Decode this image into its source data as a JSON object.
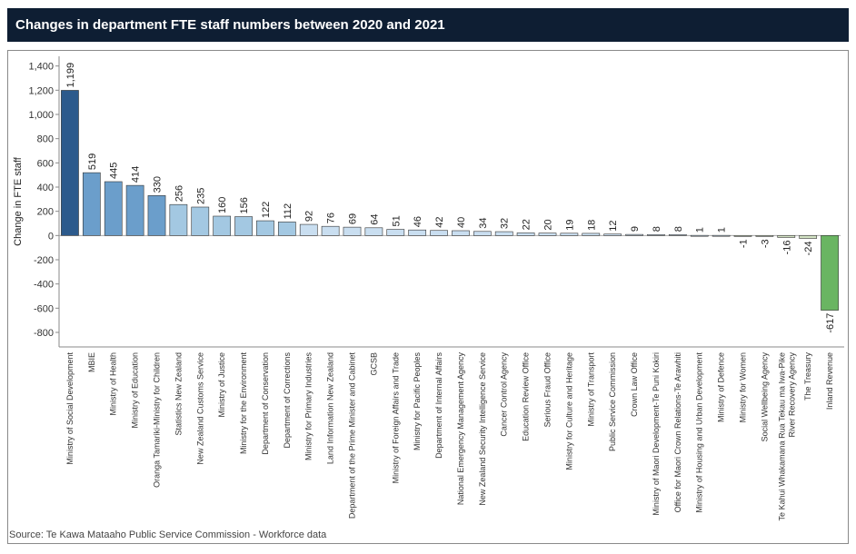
{
  "title": "Changes in department FTE staff numbers between 2020 and 2021",
  "source": "Source: Te Kawa Mataaho Public Service Commission - Workforce data",
  "colors": {
    "title_bg": "#0e1e33",
    "very_high": "#2c5a8c",
    "high": "#6b9ecb",
    "mid": "#a3c8e2",
    "low": "#c9def0",
    "negative_small": "#d3e3c4",
    "negative_large": "#6ab562"
  },
  "chart_data": {
    "type": "bar",
    "title": "Changes in department FTE staff numbers between 2020 and 2021",
    "xlabel": "",
    "ylabel": "Change in FTE staff",
    "ylim": [
      -920,
      1480
    ],
    "yticks": [
      -800,
      -600,
      -400,
      -200,
      0,
      200,
      400,
      600,
      800,
      1000,
      1200,
      1400
    ],
    "ytick_labels": [
      "-800",
      "-600",
      "-400",
      "-200",
      "0",
      "200",
      "400",
      "600",
      "800",
      "1,000",
      "1,200",
      "1,400"
    ],
    "grid": false,
    "legend": "none",
    "categories": [
      "Ministry of Social Development",
      "MBIE",
      "Ministry of Health",
      "Ministry of Education",
      "Oranga Tamariki-Ministry for Children",
      "Statistics New Zealand",
      "New Zealand Customs Service",
      "Ministry of Justice",
      "Ministry for the Environment",
      "Department of Conservation",
      "Department of Corrections",
      "Ministry for Primary Industries",
      "Land Information New Zealand",
      "Department of the Prime Minister and Cabinet",
      "GCSB",
      "Ministry of Foreign Affairs and Trade",
      "Ministry for Pacific Peoples",
      "Department of Internal Affairs",
      "National Emergency Management Agency",
      "New Zealand Security Intelligence Service",
      "Cancer Control Agency",
      "Education Review Office",
      "Serious Fraud Office",
      "Ministry for Culture and Heritage",
      "Ministry of Transport",
      "Public Service Commission",
      "Crown Law Office",
      "Ministry of Maori Development-Te Puni Kokiri",
      "Office for Maori Crown Relations-Te Arawhiti",
      "Ministry of Housing and Urban Development",
      "Ministry of Defence",
      "Ministry for Women",
      "Social Wellbeing Agency",
      [
        "Te Kahui Whakamana Rua Tekau ma Iwa-Pike",
        "River Recovery Agency"
      ],
      "The Treasury",
      "Inland Revenue"
    ],
    "values": [
      1199,
      519,
      445,
      414,
      330,
      256,
      235,
      160,
      156,
      122,
      112,
      92,
      76,
      69,
      64,
      51,
      46,
      42,
      40,
      34,
      32,
      22,
      20,
      19,
      18,
      12,
      9,
      8,
      8,
      1,
      1,
      -1,
      -3,
      -16,
      -24,
      -617
    ],
    "value_labels": [
      "1,199",
      "519",
      "445",
      "414",
      "330",
      "256",
      "235",
      "160",
      "156",
      "122",
      "112",
      "92",
      "76",
      "69",
      "64",
      "51",
      "46",
      "42",
      "40",
      "34",
      "32",
      "22",
      "20",
      "19",
      "18",
      "12",
      "9",
      "8",
      "8",
      "1",
      "1",
      "-1",
      "-3",
      "-16",
      "-24",
      "-617"
    ]
  }
}
